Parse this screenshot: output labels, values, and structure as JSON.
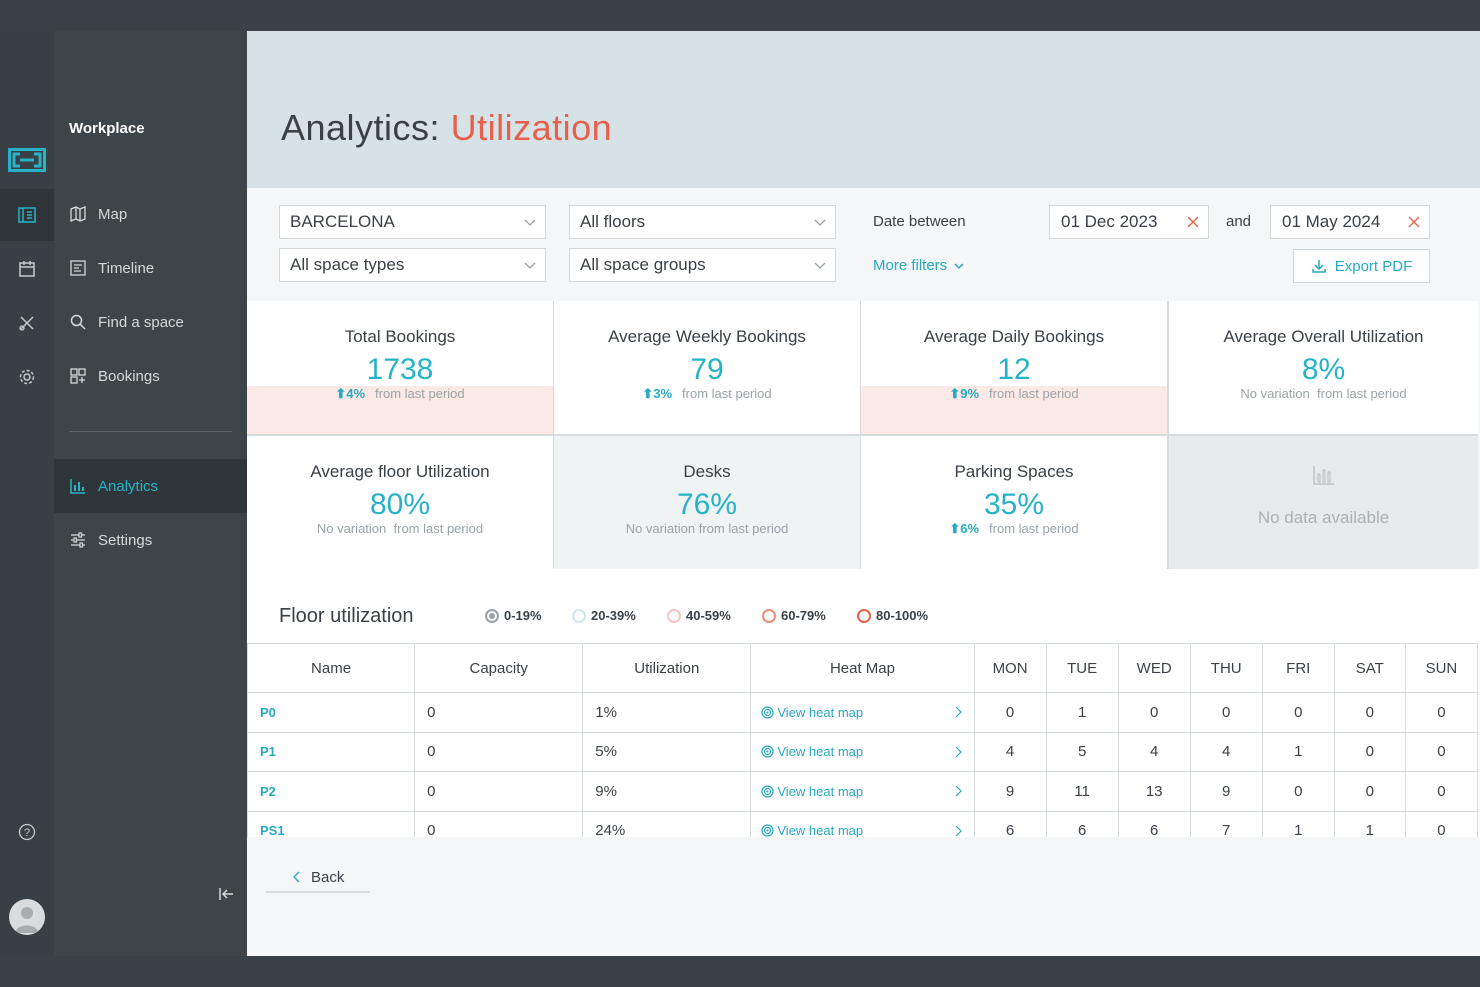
{
  "app": {
    "brand": "Workplace"
  },
  "nav": {
    "items": [
      {
        "label": "Map",
        "icon": "map-icon"
      },
      {
        "label": "Timeline",
        "icon": "timeline-icon"
      },
      {
        "label": "Find a space",
        "icon": "search-icon"
      },
      {
        "label": "Bookings",
        "icon": "bookings-grid-icon"
      }
    ],
    "secondary": [
      {
        "label": "Analytics",
        "icon": "bar-chart-icon",
        "active": true
      },
      {
        "label": "Settings",
        "icon": "sliders-icon"
      }
    ]
  },
  "header": {
    "title_prefix": "Analytics:",
    "title_accent": "Utilization"
  },
  "filters": {
    "location": "BARCELONA",
    "floors": "All floors",
    "space_types": "All space types",
    "space_groups": "All space groups",
    "date_label": "Date between",
    "date_from": "01 Dec 2023",
    "and_label": "and",
    "date_to": "01 May 2024",
    "more_filters": "More filters",
    "export": "Export PDF"
  },
  "stats": [
    {
      "title": "Total Bookings",
      "value": "1738",
      "change": "4%",
      "suffix": "from last period",
      "highlight": true
    },
    {
      "title": "Average Weekly Bookings",
      "value": "79",
      "change": "3%",
      "suffix": "from last period",
      "highlight": false
    },
    {
      "title": "Average Daily Bookings",
      "value": "12",
      "change": "9%",
      "suffix": "from last period",
      "highlight": true
    },
    {
      "title": "Average Overall Utilization",
      "value": "8%",
      "variation": "No variation",
      "suffix": "from last period",
      "highlight": false
    },
    {
      "title": "Average floor Utilization",
      "value": "80%",
      "variation": "No variation",
      "suffix": "from last period"
    },
    {
      "title": "Desks",
      "value": "76%",
      "variation": "No variation",
      "suffix": "from last period"
    },
    {
      "title": "Parking Spaces",
      "value": "35%",
      "change": "6%",
      "suffix": "from last period"
    },
    {
      "no_data": "No data available"
    }
  ],
  "floor_utilization": {
    "title": "Floor utilization",
    "legend": [
      {
        "label": "0-19%",
        "color": "#9aa3a8"
      },
      {
        "label": "20-39%",
        "color": "#cfe6ef"
      },
      {
        "label": "40-59%",
        "color": "#f4c7be"
      },
      {
        "label": "60-79%",
        "color": "#ee8a78"
      },
      {
        "label": "80-100%",
        "color": "#e8604c"
      }
    ],
    "columns": [
      "Name",
      "Capacity",
      "Utilization",
      "Heat Map",
      "MON",
      "TUE",
      "WED",
      "THU",
      "FRI",
      "SAT",
      "SUN"
    ],
    "heat_map_link": "View heat map",
    "rows": [
      {
        "name": "P0",
        "capacity": "0",
        "utilization": "1%",
        "days": [
          "0",
          "1",
          "0",
          "0",
          "0",
          "0",
          "0"
        ]
      },
      {
        "name": "P1",
        "capacity": "0",
        "utilization": "5%",
        "days": [
          "4",
          "5",
          "4",
          "4",
          "1",
          "0",
          "0"
        ]
      },
      {
        "name": "P2",
        "capacity": "0",
        "utilization": "9%",
        "days": [
          "9",
          "11",
          "13",
          "9",
          "0",
          "0",
          "0"
        ]
      },
      {
        "name": "PS1",
        "capacity": "0",
        "utilization": "24%",
        "days": [
          "6",
          "6",
          "6",
          "7",
          "1",
          "1",
          "0"
        ]
      }
    ]
  },
  "back": "Back",
  "colors": {
    "accent": "#27b3c7",
    "title_accent": "#e8604c"
  }
}
